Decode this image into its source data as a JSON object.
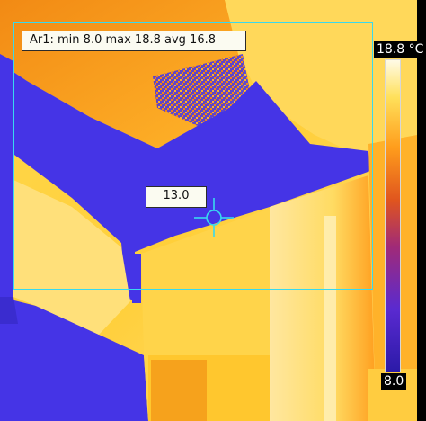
{
  "overlay": {
    "roi_stats": "Ar1: min 8.0 max 18.8 avg 16.8",
    "spot_value": "13.0"
  },
  "scale": {
    "max_label": "18.8 °C",
    "min_label": "8.0",
    "max_value": 18.8,
    "min_value": 8.0,
    "unit": "°C"
  },
  "colors": {
    "cold": "#4534e6",
    "mid": "#f07f12",
    "warm": "#ffd84d",
    "hot": "#fff6cc",
    "overlay_cyan": "#38d9ef"
  },
  "icons": {
    "spot": "crosshair-icon"
  }
}
